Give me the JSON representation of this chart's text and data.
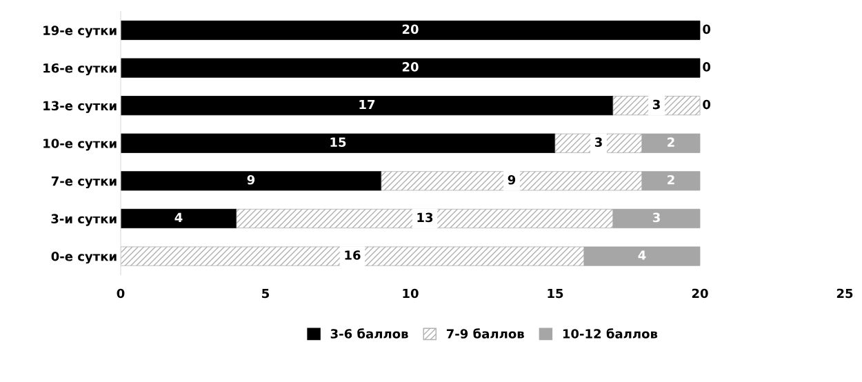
{
  "chart_data": {
    "type": "bar",
    "orientation": "horizontal",
    "stacked": true,
    "categories": [
      "19-е сутки",
      "16-е сутки",
      "13-е сутки",
      "10-е сутки",
      "7-е сутки",
      "3-и сутки",
      "0-е сутки"
    ],
    "series": [
      {
        "name": "3-6 баллов",
        "color": "#000000",
        "values": [
          20,
          20,
          17,
          15,
          9,
          4,
          0
        ],
        "value_labels": [
          "20",
          "20",
          "17",
          "15",
          "9",
          "4",
          null
        ]
      },
      {
        "name": "7-9 баллов",
        "color": "#b0b0b0",
        "values": [
          0,
          0,
          3,
          3,
          9,
          13,
          16
        ],
        "value_labels": [
          null,
          null,
          "3",
          "3",
          "9",
          "13",
          "16"
        ]
      },
      {
        "name": "10-12 баллов",
        "color": "#a6a6a6",
        "values": [
          0,
          0,
          0,
          2,
          2,
          3,
          4
        ],
        "value_labels": [
          "0",
          "0",
          "0",
          "2",
          "2",
          "3",
          "4"
        ]
      }
    ],
    "xlim": [
      0,
      25
    ],
    "xticks": [
      0,
      5,
      10,
      15,
      20,
      25
    ],
    "grid": false,
    "legend": "bottom"
  }
}
